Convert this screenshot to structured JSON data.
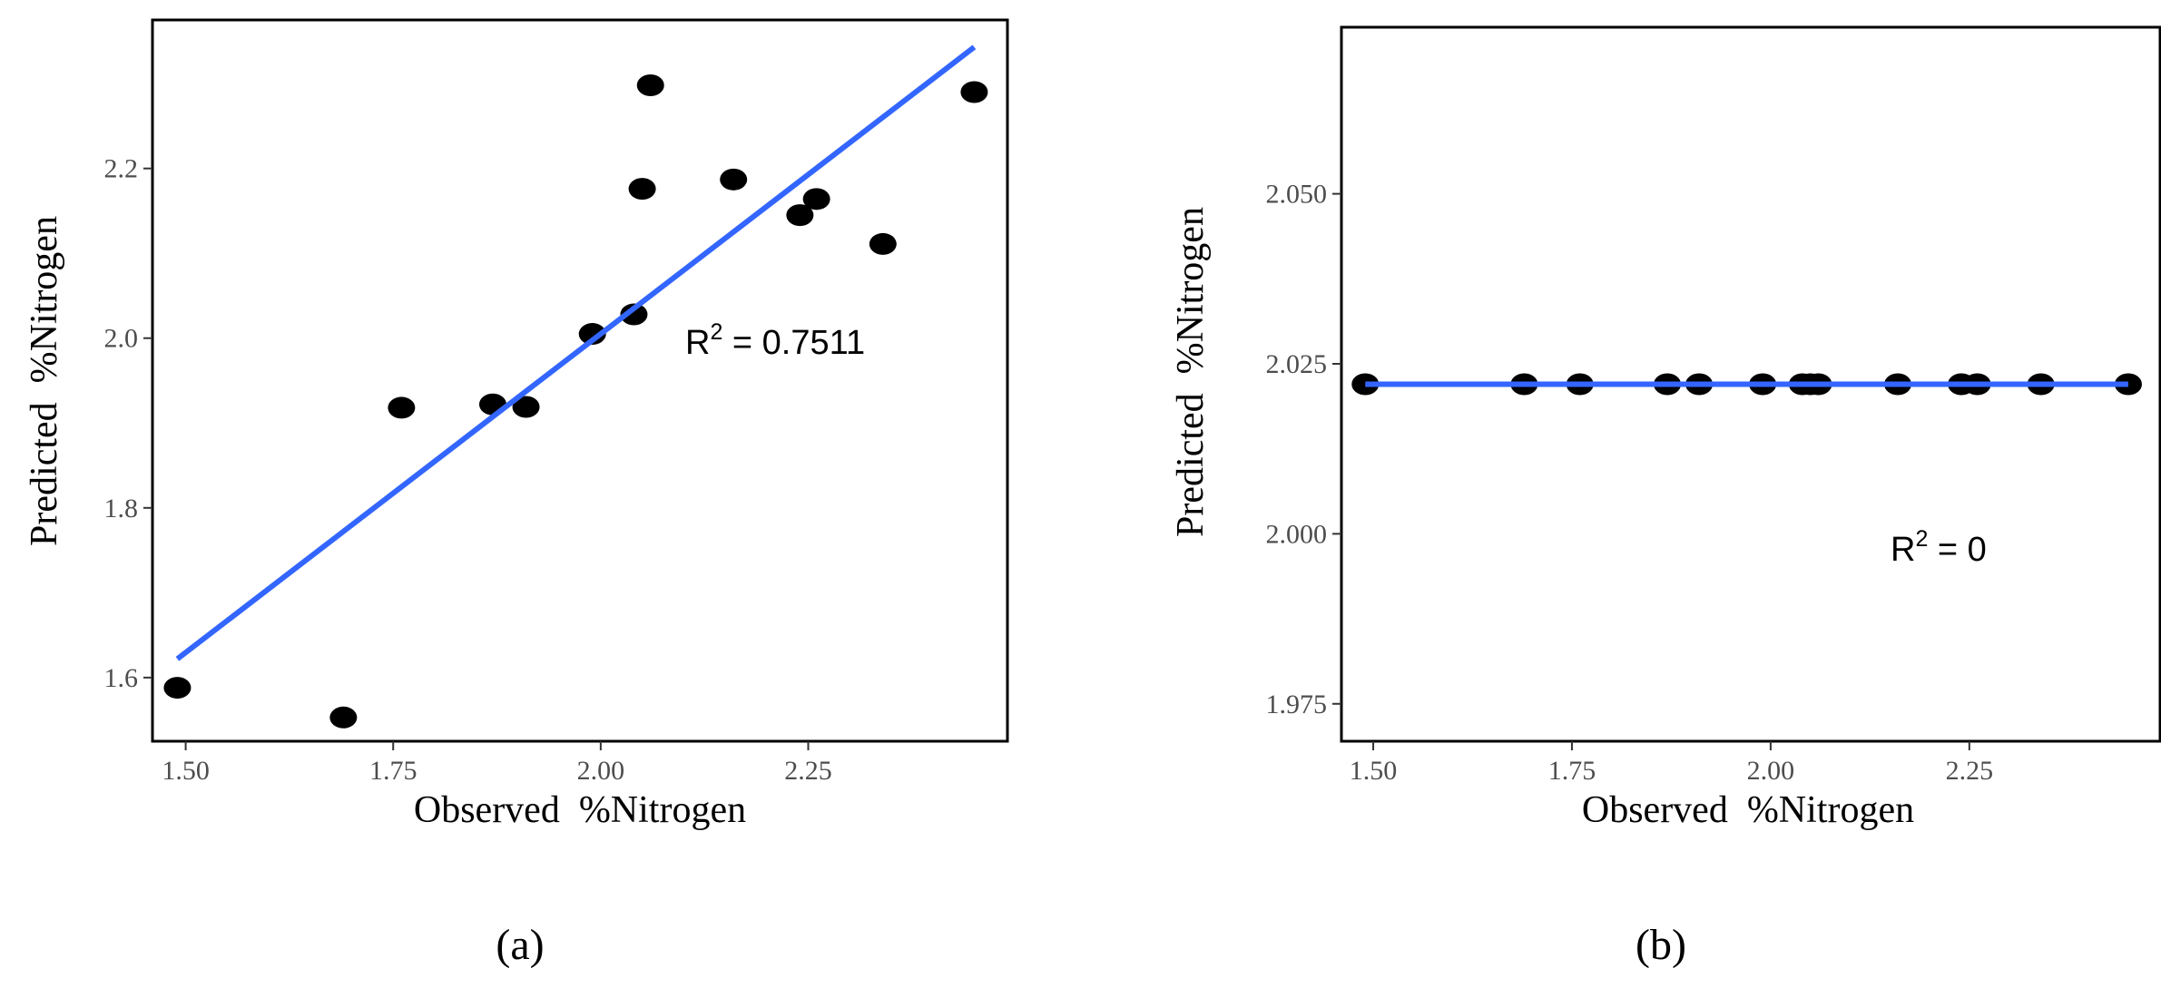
{
  "colors": {
    "points": "#000000",
    "fit_line": "#3366ff",
    "tick_labels": "#4d4d4d",
    "frame": "#000000",
    "background": "#ffffff"
  },
  "chart_data": [
    {
      "type": "scatter",
      "panel_label": "(a)",
      "xlabel": "Observed  %Nitrogen",
      "ylabel": "Predicted  %Nitrogen",
      "xlim": [
        1.46,
        2.49
      ],
      "ylim": [
        1.525,
        2.375
      ],
      "xticks": [
        1.5,
        1.75,
        2.0,
        2.25
      ],
      "xtick_labels": [
        "1.50",
        "1.75",
        "2.00",
        "2.25"
      ],
      "yticks": [
        1.6,
        1.8,
        2.0,
        2.2
      ],
      "ytick_labels": [
        "1.6",
        "1.8",
        "2.0",
        "2.2"
      ],
      "grid": false,
      "legend": "none",
      "x": [
        1.49,
        1.69,
        1.76,
        1.87,
        1.91,
        1.99,
        2.04,
        2.05,
        2.06,
        2.16,
        2.24,
        2.26,
        2.34,
        2.45
      ],
      "y": [
        1.588,
        1.553,
        1.918,
        1.922,
        1.919,
        2.005,
        2.028,
        2.176,
        2.298,
        2.187,
        2.145,
        2.164,
        2.111,
        2.29
      ],
      "fit": {
        "x": [
          1.49,
          2.45
        ],
        "y": [
          1.622,
          2.343
        ]
      },
      "annotation": {
        "base": "R",
        "sup": "2",
        "text": " = 0.7511"
      }
    },
    {
      "type": "scatter",
      "panel_label": "(b)",
      "xlabel": "Observed  %Nitrogen",
      "ylabel": "Predicted  %Nitrogen",
      "xlim": [
        1.46,
        2.49
      ],
      "ylim": [
        1.9695,
        2.0745
      ],
      "xticks": [
        1.5,
        1.75,
        2.0,
        2.25
      ],
      "xtick_labels": [
        "1.50",
        "1.75",
        "2.00",
        "2.25"
      ],
      "yticks": [
        1.975,
        2.0,
        2.025,
        2.05
      ],
      "ytick_labels": [
        "1.975",
        "2.000",
        "2.025",
        "2.050"
      ],
      "grid": false,
      "legend": "none",
      "x": [
        1.49,
        1.69,
        1.76,
        1.87,
        1.91,
        1.99,
        2.04,
        2.05,
        2.06,
        2.16,
        2.24,
        2.26,
        2.34,
        2.45
      ],
      "y": [
        2.022,
        2.022,
        2.022,
        2.022,
        2.022,
        2.022,
        2.022,
        2.022,
        2.022,
        2.022,
        2.022,
        2.022,
        2.022,
        2.022
      ],
      "fit": {
        "x": [
          1.49,
          2.45
        ],
        "y": [
          2.022,
          2.022
        ]
      },
      "annotation": {
        "base": "R",
        "sup": "2",
        "text": " = 0"
      }
    }
  ]
}
